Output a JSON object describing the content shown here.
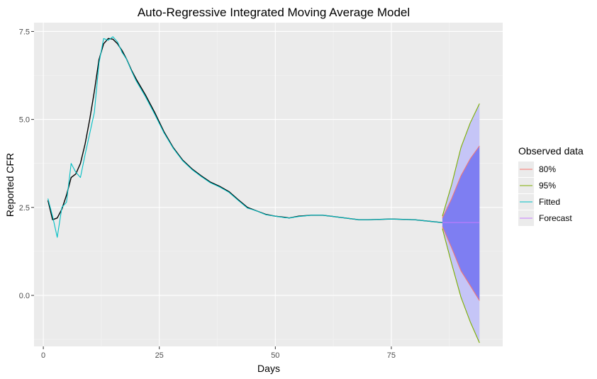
{
  "chart_data": {
    "type": "line",
    "title": "Auto-Regressive Integrated Moving Average Model",
    "xlabel": "Days",
    "ylabel": "Reported CFR",
    "xlim": [
      -2,
      99
    ],
    "ylim": [
      -1.45,
      7.75
    ],
    "x_ticks": [
      0,
      25,
      50,
      75
    ],
    "y_ticks": [
      0.0,
      2.5,
      5.0,
      7.5
    ],
    "x_tick_labels": [
      "0",
      "25",
      "50",
      "75"
    ],
    "y_tick_labels": [
      "0.0",
      "2.5",
      "5.0",
      "7.5"
    ],
    "grid": true,
    "legend": {
      "title": "Observed data",
      "position": "right",
      "items": [
        {
          "label": "80%",
          "color": "#f8766d"
        },
        {
          "label": "95%",
          "color": "#7cae00"
        },
        {
          "label": "Fitted",
          "color": "#00bfc4"
        },
        {
          "label": "Forecast",
          "color": "#c77cff"
        }
      ]
    },
    "series": [
      {
        "name": "Observed",
        "color": "#000000",
        "x": [
          1,
          2,
          3,
          4,
          5,
          6,
          7,
          8,
          9,
          10,
          11,
          12,
          13,
          14,
          15,
          16,
          17,
          18,
          19,
          20,
          22,
          24,
          26,
          28,
          30,
          32,
          34,
          36,
          38,
          40,
          42,
          44,
          46,
          48,
          50,
          52,
          53,
          55,
          58,
          60,
          62,
          65,
          68,
          70,
          75,
          80,
          86
        ],
        "y": [
          2.7,
          2.15,
          2.2,
          2.45,
          2.85,
          3.35,
          3.45,
          3.75,
          4.3,
          5.0,
          5.8,
          6.7,
          7.15,
          7.3,
          7.28,
          7.15,
          6.95,
          6.7,
          6.4,
          6.15,
          5.7,
          5.2,
          4.65,
          4.2,
          3.85,
          3.6,
          3.4,
          3.22,
          3.1,
          2.95,
          2.72,
          2.5,
          2.4,
          2.3,
          2.25,
          2.22,
          2.2,
          2.25,
          2.28,
          2.28,
          2.25,
          2.2,
          2.15,
          2.15,
          2.17,
          2.15,
          2.07
        ]
      },
      {
        "name": "Fitted",
        "color": "#00bfc4",
        "x": [
          1,
          2,
          3,
          4,
          5,
          6,
          7,
          8,
          9,
          10,
          11,
          12,
          13,
          14,
          15,
          16,
          17,
          18,
          19,
          20,
          22,
          24,
          26,
          28,
          30,
          32,
          34,
          36,
          38,
          40,
          42,
          44,
          46,
          48,
          50,
          52,
          53,
          55,
          58,
          60,
          62,
          65,
          68,
          70,
          75,
          80,
          86
        ],
        "y": [
          2.75,
          2.25,
          1.65,
          2.5,
          2.65,
          3.75,
          3.5,
          3.35,
          4.0,
          4.6,
          5.2,
          6.6,
          7.3,
          7.25,
          7.35,
          7.2,
          6.9,
          6.7,
          6.38,
          6.1,
          5.65,
          5.15,
          4.62,
          4.18,
          3.83,
          3.58,
          3.38,
          3.2,
          3.08,
          2.93,
          2.7,
          2.48,
          2.4,
          2.29,
          2.25,
          2.21,
          2.2,
          2.24,
          2.28,
          2.28,
          2.25,
          2.2,
          2.15,
          2.15,
          2.17,
          2.15,
          2.07
        ]
      }
    ],
    "forecast": {
      "color": "#c77cff",
      "x": [
        86,
        88,
        90,
        92,
        94
      ],
      "mean": [
        2.07,
        2.07,
        2.07,
        2.07,
        2.07
      ],
      "lo80": [
        1.95,
        1.35,
        0.7,
        0.28,
        -0.15
      ],
      "hi80": [
        2.2,
        2.75,
        3.4,
        3.88,
        4.25
      ],
      "lo95": [
        1.9,
        0.9,
        -0.05,
        -0.75,
        -1.35
      ],
      "hi95": [
        2.25,
        3.15,
        4.2,
        4.9,
        5.45
      ]
    }
  }
}
